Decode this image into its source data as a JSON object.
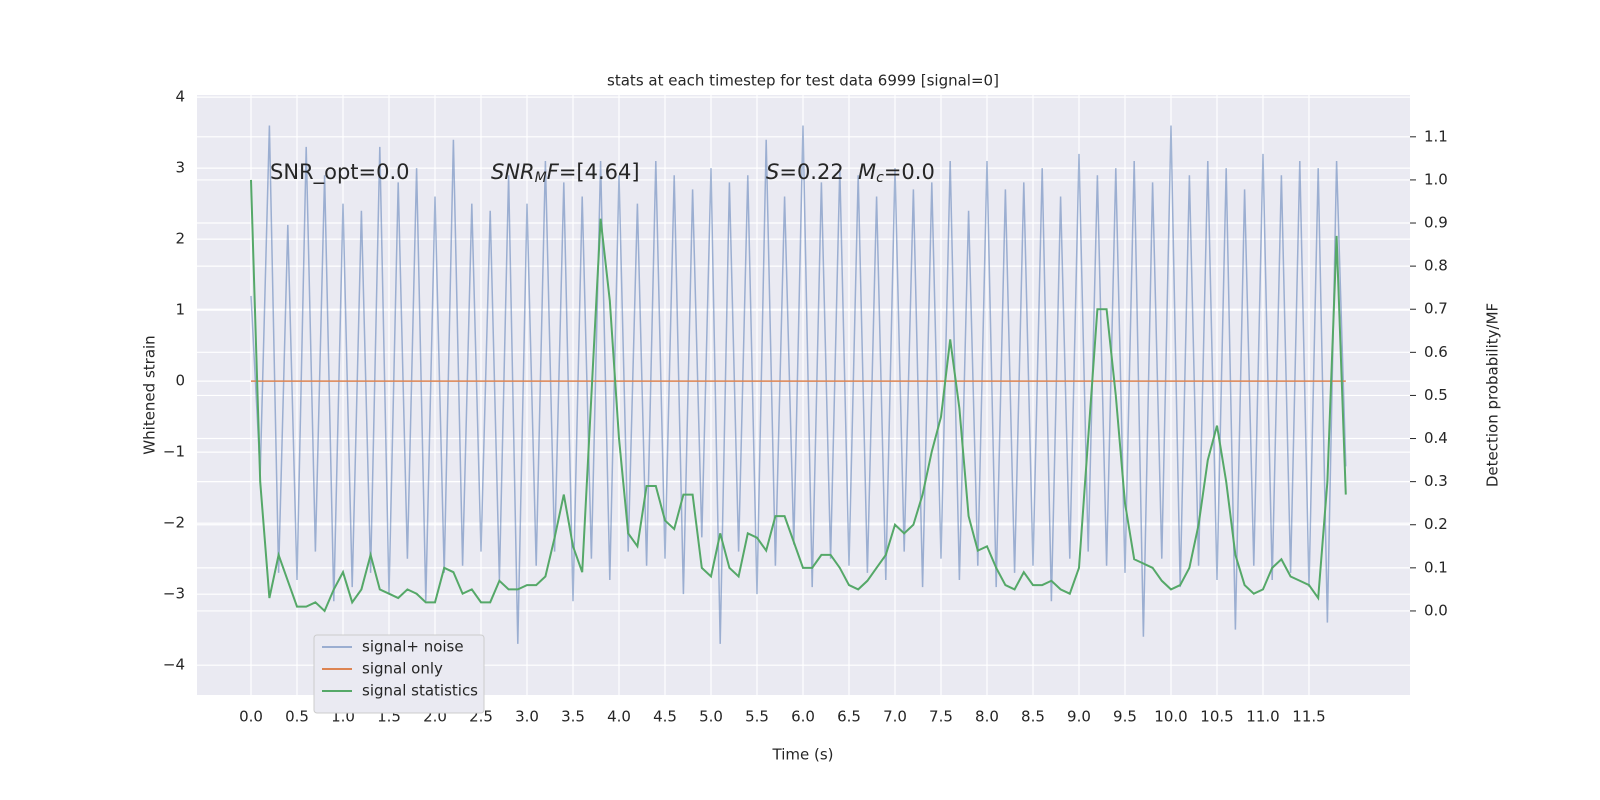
{
  "chart_data": {
    "type": "line",
    "title": "stats at each timestep for test data 6999 [signal=0]",
    "xlabel": "Time (s)",
    "ylabel": "Whitened strain",
    "y2label": "Detection probability/MF",
    "x": [
      0.0,
      0.1,
      0.2,
      0.3,
      0.4,
      0.5,
      0.6,
      0.7,
      0.8,
      0.9,
      1.0,
      1.1,
      1.2,
      1.3,
      1.4,
      1.5,
      1.6,
      1.7,
      1.8,
      1.9,
      2.0,
      2.1,
      2.2,
      2.3,
      2.4,
      2.5,
      2.6,
      2.7,
      2.8,
      2.9,
      3.0,
      3.1,
      3.2,
      3.3,
      3.4,
      3.5,
      3.6,
      3.7,
      3.8,
      3.9,
      4.0,
      4.1,
      4.2,
      4.3,
      4.4,
      4.5,
      4.6,
      4.7,
      4.8,
      4.9,
      5.0,
      5.1,
      5.2,
      5.3,
      5.4,
      5.5,
      5.6,
      5.7,
      5.8,
      5.9,
      6.0,
      6.1,
      6.2,
      6.3,
      6.4,
      6.5,
      6.6,
      6.7,
      6.8,
      6.9,
      7.0,
      7.1,
      7.2,
      7.3,
      7.4,
      7.5,
      7.6,
      7.7,
      7.8,
      7.9,
      8.0,
      8.1,
      8.2,
      8.3,
      8.4,
      8.5,
      8.6,
      8.7,
      8.8,
      8.9,
      9.0,
      9.1,
      9.2,
      9.3,
      9.4,
      9.5,
      9.6,
      9.7,
      9.8,
      9.9,
      10.0,
      10.1,
      10.2,
      10.3,
      10.4,
      10.5,
      10.6,
      10.7,
      10.8,
      10.9,
      11.0,
      11.1,
      11.2,
      11.3,
      11.4,
      11.5,
      11.6,
      11.7,
      11.8,
      11.9
    ],
    "series": [
      {
        "name": "signal+ noise",
        "color": "#4c72b0",
        "opacity": 0.5,
        "values": [
          1.2,
          -1.3,
          3.6,
          -2.7,
          2.2,
          -2.8,
          3.3,
          -2.4,
          2.9,
          -3.1,
          2.5,
          -2.9,
          2.4,
          -2.7,
          3.3,
          -3.0,
          2.8,
          -2.5,
          3.0,
          -3.1,
          2.6,
          -2.7,
          3.4,
          -2.6,
          2.5,
          -2.4,
          2.4,
          -2.8,
          2.9,
          -3.7,
          2.5,
          -2.6,
          3.1,
          -2.4,
          2.8,
          -3.1,
          2.6,
          -2.5,
          3.1,
          -2.8,
          2.9,
          -2.4,
          2.5,
          -2.6,
          3.1,
          -2.5,
          2.9,
          -3.0,
          2.7,
          -2.2,
          3.0,
          -3.7,
          2.8,
          -2.4,
          2.9,
          -3.0,
          3.4,
          -2.6,
          2.6,
          -2.3,
          3.6,
          -2.9,
          2.8,
          -2.5,
          3.0,
          -2.6,
          2.9,
          -2.7,
          2.6,
          -2.8,
          3.0,
          -2.4,
          2.7,
          -2.9,
          2.8,
          -2.5,
          3.1,
          -2.8,
          2.4,
          -2.6,
          3.1,
          -2.9,
          2.7,
          -2.7,
          2.8,
          -2.6,
          3.0,
          -3.1,
          2.6,
          -2.5,
          3.2,
          -2.4,
          2.9,
          -2.6,
          3.0,
          -2.7,
          3.1,
          -3.6,
          2.8,
          -2.5,
          3.6,
          -2.9,
          2.9,
          -2.6,
          3.1,
          -2.8,
          3.0,
          -3.5,
          2.7,
          -2.6,
          3.2,
          -2.8,
          2.9,
          -2.7,
          3.1,
          -2.9,
          3.0,
          -3.4,
          3.1,
          -1.2
        ]
      },
      {
        "name": "signal only",
        "color": "#dd8452",
        "opacity": 1,
        "values": [
          0,
          0,
          0,
          0,
          0,
          0,
          0,
          0,
          0,
          0,
          0,
          0,
          0,
          0,
          0,
          0,
          0,
          0,
          0,
          0,
          0,
          0,
          0,
          0,
          0,
          0,
          0,
          0,
          0,
          0,
          0,
          0,
          0,
          0,
          0,
          0,
          0,
          0,
          0,
          0,
          0,
          0,
          0,
          0,
          0,
          0,
          0,
          0,
          0,
          0,
          0,
          0,
          0,
          0,
          0,
          0,
          0,
          0,
          0,
          0,
          0,
          0,
          0,
          0,
          0,
          0,
          0,
          0,
          0,
          0,
          0,
          0,
          0,
          0,
          0,
          0,
          0,
          0,
          0,
          0,
          0,
          0,
          0,
          0,
          0,
          0,
          0,
          0,
          0,
          0,
          0,
          0,
          0,
          0,
          0,
          0,
          0,
          0,
          0,
          0,
          0,
          0,
          0,
          0,
          0,
          0,
          0,
          0,
          0,
          0,
          0,
          0,
          0,
          0,
          0,
          0,
          0,
          0,
          0,
          0
        ]
      },
      {
        "name": "signal statistics",
        "color": "#55a868",
        "opacity": 1,
        "axis": "y2",
        "values": [
          1.0,
          0.3,
          0.03,
          0.13,
          0.07,
          0.01,
          0.01,
          0.02,
          0.0,
          0.05,
          0.09,
          0.02,
          0.05,
          0.13,
          0.05,
          0.04,
          0.03,
          0.05,
          0.04,
          0.02,
          0.02,
          0.1,
          0.09,
          0.04,
          0.05,
          0.02,
          0.02,
          0.07,
          0.05,
          0.05,
          0.06,
          0.06,
          0.08,
          0.17,
          0.27,
          0.15,
          0.09,
          0.5,
          0.91,
          0.72,
          0.4,
          0.18,
          0.15,
          0.29,
          0.29,
          0.21,
          0.19,
          0.27,
          0.27,
          0.1,
          0.08,
          0.18,
          0.1,
          0.08,
          0.18,
          0.17,
          0.14,
          0.22,
          0.22,
          0.16,
          0.1,
          0.1,
          0.13,
          0.13,
          0.1,
          0.06,
          0.05,
          0.07,
          0.1,
          0.13,
          0.2,
          0.18,
          0.2,
          0.27,
          0.37,
          0.45,
          0.63,
          0.47,
          0.22,
          0.14,
          0.15,
          0.1,
          0.06,
          0.05,
          0.09,
          0.06,
          0.06,
          0.07,
          0.05,
          0.04,
          0.1,
          0.4,
          0.7,
          0.7,
          0.5,
          0.25,
          0.12,
          0.11,
          0.1,
          0.07,
          0.05,
          0.06,
          0.1,
          0.2,
          0.35,
          0.43,
          0.3,
          0.13,
          0.06,
          0.04,
          0.05,
          0.1,
          0.12,
          0.08,
          0.07,
          0.06,
          0.03,
          0.3,
          0.87,
          0.27
        ]
      }
    ],
    "xlim": [
      -0.587,
      12.598
    ],
    "xticks": [
      {
        "value": 0,
        "label": "0.0"
      },
      0.5,
      {
        "value": 1,
        "label": "1.0"
      },
      1.5,
      {
        "value": 2,
        "label": "2.0"
      },
      2.5,
      {
        "value": 3,
        "label": "3.0"
      },
      3.5,
      {
        "value": 4,
        "label": "4.0"
      },
      4.5,
      {
        "value": 5,
        "label": "5.0"
      },
      5.5,
      {
        "value": 6,
        "label": "6.0"
      },
      6.5,
      {
        "value": 7,
        "label": "7.0"
      },
      7.5,
      {
        "value": 8,
        "label": "8.0"
      },
      8.5,
      {
        "value": 9,
        "label": "9.0"
      },
      9.5,
      {
        "value": 10,
        "label": "10.0"
      },
      10.5,
      {
        "value": 11,
        "label": "11.0"
      },
      11.5
    ],
    "ylim": [
      -4.42,
      4.03
    ],
    "yticks": [
      {
        "value": -4,
        "label": "−4"
      },
      {
        "value": -3,
        "label": "−3"
      },
      {
        "value": -2,
        "label": "−2"
      },
      {
        "value": -1,
        "label": "−1"
      },
      0,
      1,
      2,
      3,
      4
    ],
    "y2lim": [
      -0.195,
      1.197
    ],
    "y2ticks": [
      {
        "value": 0,
        "label": "0.0"
      },
      0.1,
      0.2,
      0.3,
      0.4,
      0.5,
      0.6,
      0.7,
      0.8,
      0.9,
      {
        "value": 1,
        "label": "1.0"
      },
      1.1
    ],
    "grid": true,
    "legend": "lower left",
    "annotations": [
      {
        "parts": [
          {
            "text": "SNR_opt=0.0"
          }
        ]
      },
      {
        "parts": [
          {
            "text": "SNR",
            "italic": true
          },
          {
            "text": "M",
            "italic": true,
            "sub": true
          },
          {
            "text": "F",
            "italic": true
          },
          {
            "text": "=[4.64]"
          }
        ]
      },
      {
        "parts": [
          {
            "text": "S",
            "italic": true
          },
          {
            "text": "=0.22"
          }
        ]
      },
      {
        "parts": [
          {
            "text": "M",
            "italic": true
          },
          {
            "text": "c",
            "italic": true,
            "sub": true
          },
          {
            "text": "=0.0"
          }
        ]
      }
    ]
  }
}
